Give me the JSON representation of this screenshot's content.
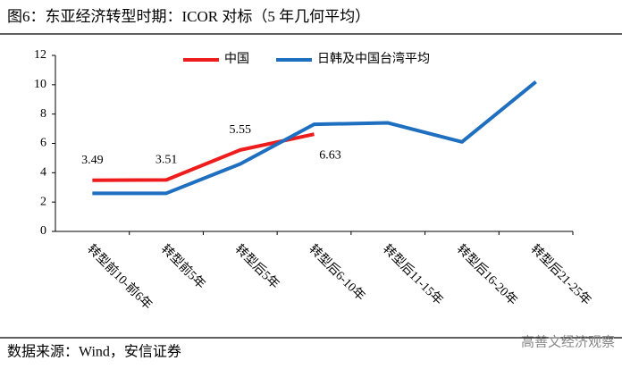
{
  "title": "图6：东亚经济转型时期：ICOR 对标（5 年几何平均）",
  "source": "数据来源：Wind，安信证券",
  "watermark": "高善文经济观察",
  "chart_data": {
    "type": "line",
    "categories": [
      "转型前10-前6年",
      "转型前5年",
      "转型后5年",
      "转型后6-10年",
      "转型后11-15年",
      "转型后16-20年",
      "转型后21-25年"
    ],
    "series": [
      {
        "name": "中国",
        "color": "#ee1c1c",
        "values": [
          3.49,
          3.51,
          5.55,
          6.63,
          null,
          null,
          null
        ],
        "data_labels": true
      },
      {
        "name": "日韩及中国台湾平均",
        "color": "#1f6fc0",
        "values": [
          2.6,
          2.6,
          4.6,
          7.3,
          7.4,
          6.1,
          10.2
        ],
        "data_labels": false
      }
    ],
    "ylim": [
      0,
      12
    ],
    "yticks": [
      0,
      2,
      4,
      6,
      8,
      10,
      12
    ],
    "grid": false,
    "legend": "top"
  }
}
